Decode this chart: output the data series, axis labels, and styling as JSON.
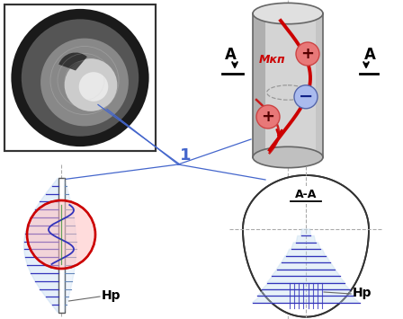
{
  "bg_color": "#ffffff",
  "blue_line_color": "#3333bb",
  "red_color": "#cc0000",
  "red_fill": "#e87878",
  "blue_fill": "#88aadd",
  "cylinder_color": "#d0d0d0",
  "cylinder_dark": "#aaaaaa",
  "cylinder_edge": "#666666",
  "label_1": "1",
  "label_Hp": "Hp",
  "label_AA": "A-A",
  "label_Mkp": "Mкп",
  "label_A": "A",
  "dashed_color": "#aaaaaa",
  "connector_color": "#4466cc",
  "photo_border": "#333333",
  "text_color": "#000000"
}
